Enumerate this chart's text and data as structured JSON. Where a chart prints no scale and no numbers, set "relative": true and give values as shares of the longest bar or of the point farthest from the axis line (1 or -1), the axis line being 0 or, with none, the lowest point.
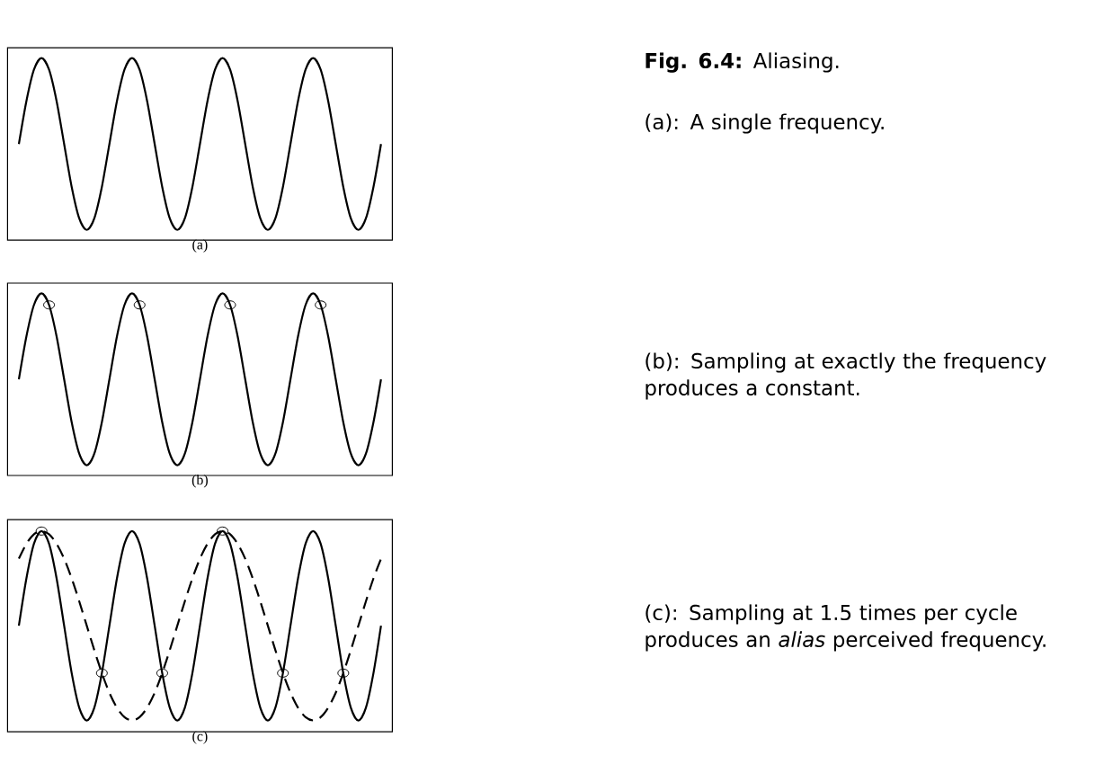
{
  "chart_data": [
    {
      "type": "line",
      "relative": true,
      "xlabel": "(a)",
      "annotations": [
        "**Fig. 6.4:** Aliasing.",
        "(a): A single frequency."
      ],
      "categories": [
        null,
        null,
        null,
        null,
        null,
        null,
        null,
        null,
        null,
        null,
        null,
        null,
        null,
        null,
        null,
        null,
        null,
        null,
        null,
        null,
        null,
        null,
        null,
        null,
        null,
        null,
        null,
        null,
        null,
        null,
        null,
        null,
        null,
        null,
        null,
        null,
        null,
        null,
        null,
        null,
        null,
        null,
        null,
        null,
        null,
        null,
        null,
        null,
        null
      ],
      "series": [
        {
          "color": "#000000",
          "line_style": "solid",
          "values": [
            0.5,
            0.75,
            0.933,
            1,
            0.933,
            0.75,
            0.5,
            0.25,
            0.067,
            0,
            0.067,
            0.25,
            0.5,
            0.75,
            0.933,
            1,
            0.933,
            0.75,
            0.5,
            0.25,
            0.067,
            0,
            0.067,
            0.25,
            0.5,
            0.75,
            0.933,
            1,
            0.933,
            0.75,
            0.5,
            0.25,
            0.067,
            0,
            0.067,
            0.25,
            0.5,
            0.75,
            0.933,
            1,
            0.933,
            0.75,
            0.5,
            0.25,
            0.067,
            0,
            0.067,
            0.25,
            0.5
          ]
        }
      ]
    },
    {
      "type": "line",
      "relative": true,
      "xlabel": "(b)",
      "annotations": [
        "(b): Sampling at exactly the frequency produces a constant."
      ],
      "categories": [
        null,
        null,
        null,
        null,
        null,
        null,
        null,
        null,
        null,
        null,
        null,
        null,
        null,
        null,
        null,
        null,
        null,
        null,
        null,
        null,
        null,
        null,
        null,
        null,
        null,
        null,
        null,
        null,
        null,
        null,
        null,
        null,
        null,
        null,
        null,
        null,
        null,
        null,
        null,
        null,
        null,
        null,
        null,
        null,
        null,
        null,
        null,
        null,
        null
      ],
      "series": [
        {
          "color": "#000000",
          "line_style": "solid",
          "values": [
            0.5,
            0.75,
            0.933,
            1,
            0.933,
            0.75,
            0.5,
            0.25,
            0.067,
            0,
            0.067,
            0.25,
            0.5,
            0.75,
            0.933,
            1,
            0.933,
            0.75,
            0.5,
            0.25,
            0.067,
            0,
            0.067,
            0.25,
            0.5,
            0.75,
            0.933,
            1,
            0.933,
            0.75,
            0.5,
            0.25,
            0.067,
            0,
            0.067,
            0.25,
            0.5,
            0.75,
            0.933,
            1,
            0.933,
            0.75,
            0.5,
            0.25,
            0.067,
            0,
            0.067,
            0.25,
            0.5
          ]
        },
        {
          "type": "scatter",
          "color": "#000000",
          "marker": "circle",
          "values": [
            null,
            null,
            null,
            null,
            0.933,
            null,
            null,
            null,
            null,
            null,
            null,
            null,
            null,
            null,
            null,
            null,
            0.933,
            null,
            null,
            null,
            null,
            null,
            null,
            null,
            null,
            null,
            null,
            null,
            0.933,
            null,
            null,
            null,
            null,
            null,
            null,
            null,
            null,
            null,
            null,
            null,
            0.933,
            null,
            null,
            null,
            null,
            null,
            null,
            null,
            null
          ]
        }
      ]
    },
    {
      "type": "line",
      "relative": true,
      "xlabel": "(c)",
      "annotations": [
        "(c): Sampling at 1.5 times per cycle produces an *alias* perceived frequency."
      ],
      "categories": [
        null,
        null,
        null,
        null,
        null,
        null,
        null,
        null,
        null,
        null,
        null,
        null,
        null,
        null,
        null,
        null,
        null,
        null,
        null,
        null,
        null,
        null,
        null,
        null,
        null,
        null,
        null,
        null,
        null,
        null,
        null,
        null,
        null,
        null,
        null,
        null,
        null,
        null,
        null,
        null,
        null,
        null,
        null,
        null,
        null,
        null,
        null,
        null,
        null
      ],
      "series": [
        {
          "color": "#000000",
          "line_style": "solid",
          "values": [
            0.5,
            0.75,
            0.933,
            1,
            0.933,
            0.75,
            0.5,
            0.25,
            0.067,
            0,
            0.067,
            0.25,
            0.5,
            0.75,
            0.933,
            1,
            0.933,
            0.75,
            0.5,
            0.25,
            0.067,
            0,
            0.067,
            0.25,
            0.5,
            0.75,
            0.933,
            1,
            0.933,
            0.75,
            0.5,
            0.25,
            0.067,
            0,
            0.067,
            0.25,
            0.5,
            0.75,
            0.933,
            1,
            0.933,
            0.75,
            0.5,
            0.25,
            0.067,
            0,
            0.067,
            0.25,
            0.5
          ]
        },
        {
          "color": "#000000",
          "line_style": "dashed",
          "values": [
            0.854,
            0.933,
            0.983,
            1,
            0.983,
            0.933,
            0.854,
            0.75,
            0.629,
            0.5,
            0.371,
            0.25,
            0.146,
            0.067,
            0.017,
            0,
            0.017,
            0.067,
            0.146,
            0.25,
            0.371,
            0.5,
            0.629,
            0.75,
            0.854,
            0.933,
            0.983,
            1,
            0.983,
            0.933,
            0.854,
            0.75,
            0.629,
            0.5,
            0.371,
            0.25,
            0.146,
            0.067,
            0.017,
            0,
            0.017,
            0.067,
            0.146,
            0.25,
            0.371,
            0.5,
            0.629,
            0.75,
            0.854
          ]
        },
        {
          "type": "scatter",
          "color": "#000000",
          "marker": "circle",
          "values": [
            null,
            null,
            null,
            1,
            null,
            null,
            null,
            null,
            null,
            null,
            null,
            0.25,
            null,
            null,
            null,
            null,
            null,
            null,
            null,
            0.25,
            null,
            null,
            null,
            null,
            null,
            null,
            null,
            1,
            null,
            null,
            null,
            null,
            null,
            null,
            null,
            0.25,
            null,
            null,
            null,
            null,
            null,
            null,
            null,
            0.25,
            null,
            null,
            null,
            null,
            null
          ]
        }
      ]
    }
  ]
}
